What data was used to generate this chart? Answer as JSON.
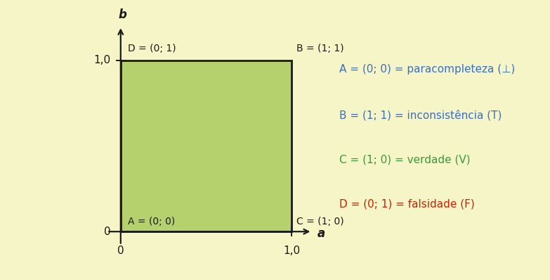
{
  "background_color": "#f5f5c8",
  "square_color": "#b5d16e",
  "square_edge_color": "#1a1a1a",
  "axis_color": "#1a1a1a",
  "text_color_blue": "#3a6fc4",
  "text_color_green": "#3a9a3a",
  "text_color_red": "#cc2200",
  "text_color_black": "#1a1a1a",
  "corner_labels": {
    "A": "A = (0; 0)",
    "B": "B = (1; 1)",
    "C": "C = (1; 0)",
    "D": "D = (0; 1)"
  },
  "legend_lines": [
    {
      "text": "A = (0; 0) = paracompleteza (⊥)",
      "color": "#3a6fc4"
    },
    {
      "text": "B = (1; 1) = inconsistência (T)",
      "color": "#3a6fc4"
    },
    {
      "text": "C = (1; 0) = verdade (V)",
      "color": "#3a9a3a"
    },
    {
      "text": "D = (0; 1) = falsidade (F)",
      "color": "#cc2200"
    }
  ],
  "axis_label_a": "a",
  "axis_label_b": "b",
  "figsize": [
    7.83,
    3.98
  ],
  "dpi": 100
}
